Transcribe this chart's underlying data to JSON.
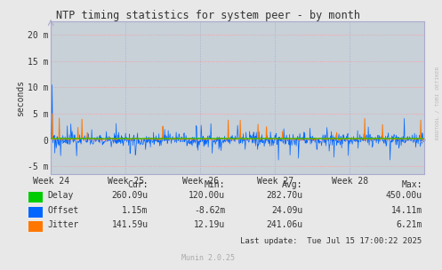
{
  "title": "NTP timing statistics for system peer - by month",
  "ylabel": "seconds",
  "background_color": "#e8e8e8",
  "plot_background_color": "#c8d0d8",
  "grid_color_h": "#ff9999",
  "grid_color_v": "#aaaacc",
  "border_color": "#aaaacc",
  "title_color": "#333333",
  "watermark": "RRDTOOL / TOBI OETIKER",
  "munin_text": "Munin 2.0.25",
  "last_update": "Last update:  Tue Jul 15 17:00:22 2025",
  "ytick_labels": [
    "-5 m",
    "0",
    "5 m",
    "10 m",
    "15 m",
    "20 m"
  ],
  "ytick_values": [
    -0.005,
    0,
    0.005,
    0.01,
    0.015,
    0.02
  ],
  "ylim": [
    -0.0065,
    0.0225
  ],
  "xtick_labels": [
    "Week 24",
    "Week 25",
    "Week 26",
    "Week 27",
    "Week 28"
  ],
  "week_positions": [
    0,
    168,
    336,
    504,
    672
  ],
  "total_points": 840,
  "legend_entries": [
    {
      "label": "Delay",
      "color": "#00cc00"
    },
    {
      "label": "Offset",
      "color": "#0066ff"
    },
    {
      "label": "Jitter",
      "color": "#ff7700"
    }
  ],
  "stats": {
    "Delay": {
      "cur": "260.09u",
      "min": "120.00u",
      "avg": "282.70u",
      "max": "450.00u"
    },
    "Offset": {
      "cur": "1.15m",
      "min": "-8.62m",
      "avg": "24.09u",
      "max": "14.11m"
    },
    "Jitter": {
      "cur": "141.59u",
      "min": "12.19u",
      "avg": "241.06u",
      "max": "6.21m"
    }
  },
  "delay_color": "#00cc00",
  "offset_color": "#0066ff",
  "jitter_color": "#ff7700"
}
